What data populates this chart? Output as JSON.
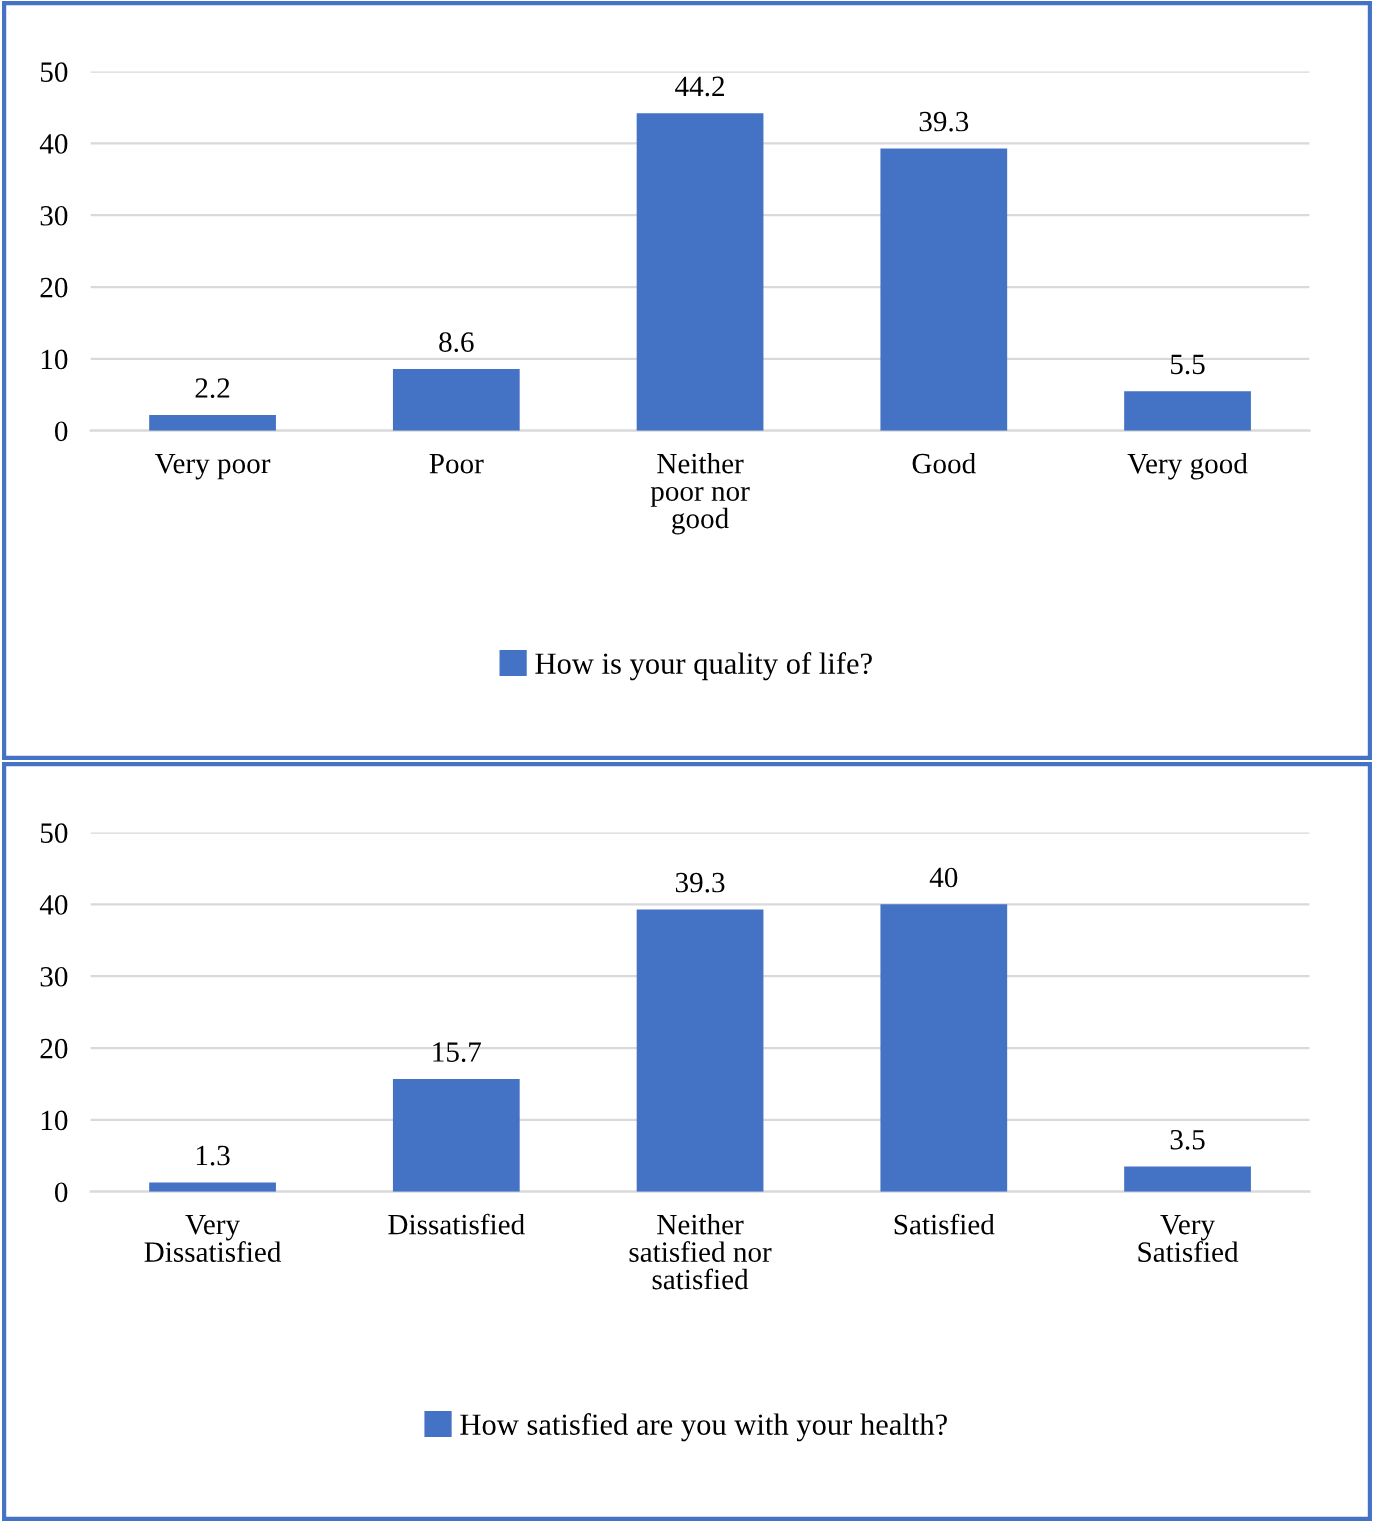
{
  "chart_data": [
    {
      "type": "bar",
      "categories": [
        "Very poor",
        "Poor",
        "Neither\npoor nor\ngood",
        "Good",
        "Very good"
      ],
      "series": [
        {
          "name": "How is your quality of life?",
          "color": "#4472c4",
          "values": [
            2.2,
            8.6,
            44.2,
            39.3,
            5.5
          ]
        }
      ],
      "ylim": [
        0,
        50
      ],
      "yticks": [
        0,
        10,
        20,
        30,
        40,
        50
      ],
      "grid": "y",
      "legend": "bottom",
      "data_labels": true
    },
    {
      "type": "bar",
      "categories": [
        "Very\nDissatisfied",
        "Dissatisfied",
        "Neither\nsatisfied nor\nsatisfied",
        "Satisfied",
        "Very\nSatisfied"
      ],
      "series": [
        {
          "name": "How satisfied are you with your health?",
          "color": "#4472c4",
          "values": [
            1.3,
            15.7,
            39.3,
            40,
            3.5
          ]
        }
      ],
      "ylim": [
        0,
        50
      ],
      "yticks": [
        0,
        10,
        20,
        30,
        40,
        50
      ],
      "grid": "y",
      "legend": "bottom",
      "data_labels": true
    }
  ]
}
